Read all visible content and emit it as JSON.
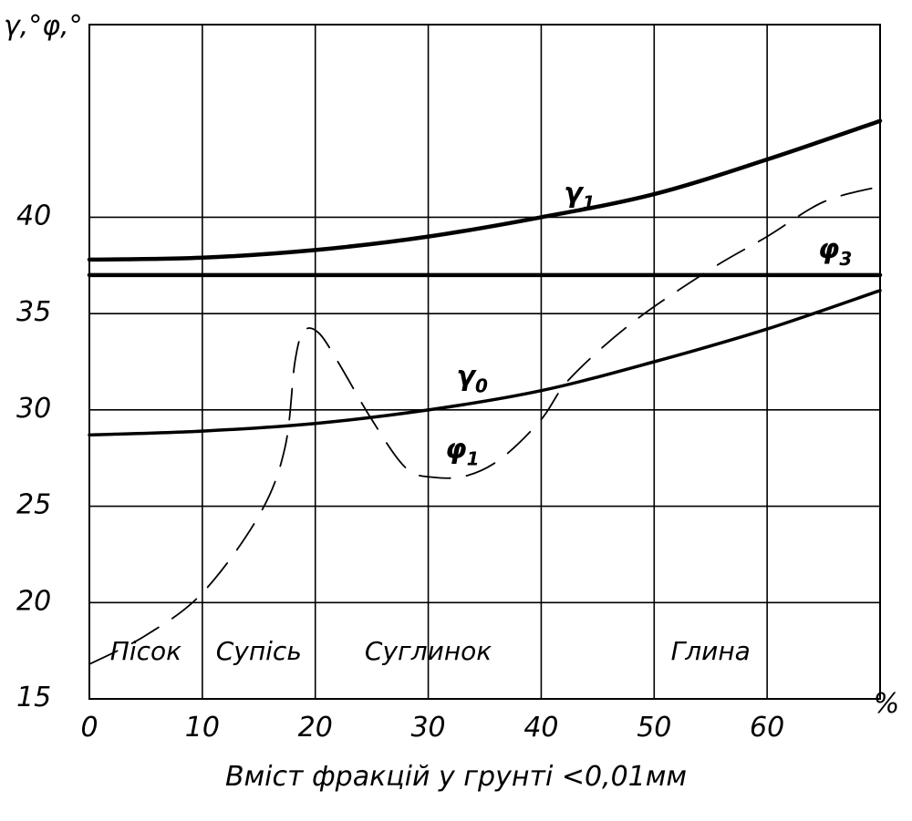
{
  "chart_data": {
    "type": "line",
    "ylabel": "γ,°φ,°",
    "xlabel": "Вміст фракцій у грунті  <0,01мм",
    "x_unit_label": "%",
    "xlim": [
      0,
      70
    ],
    "ylim": [
      15,
      50
    ],
    "x_ticks": [
      0,
      10,
      20,
      30,
      40,
      50,
      60
    ],
    "x_tick_labels": [
      "0",
      "10",
      "20",
      "30",
      "40",
      "50",
      "60"
    ],
    "y_ticks": [
      15,
      20,
      25,
      30,
      35,
      40
    ],
    "y_tick_labels": [
      "15",
      "20",
      "25",
      "30",
      "35",
      "40"
    ],
    "grid": true,
    "soil_zones": [
      {
        "label": "Пісок",
        "from": 0,
        "to": 10
      },
      {
        "label": "Супісь",
        "from": 10,
        "to": 20
      },
      {
        "label": "Суглинок",
        "from": 20,
        "to": 40
      },
      {
        "label": "Глина",
        "from": 40,
        "to": 70
      }
    ],
    "zone_boundary_y": 20,
    "series": [
      {
        "name": "γ1",
        "style": "solid-thick",
        "points": [
          [
            0,
            37.8
          ],
          [
            10,
            37.9
          ],
          [
            20,
            38.3
          ],
          [
            30,
            39
          ],
          [
            40,
            40
          ],
          [
            50,
            41.2
          ],
          [
            60,
            43
          ],
          [
            70,
            45
          ]
        ]
      },
      {
        "name": "φ3",
        "style": "solid-thick",
        "points": [
          [
            0,
            37
          ],
          [
            70,
            37
          ]
        ]
      },
      {
        "name": "γ0",
        "style": "solid",
        "points": [
          [
            0,
            28.7
          ],
          [
            10,
            28.9
          ],
          [
            20,
            29.3
          ],
          [
            30,
            30
          ],
          [
            40,
            31
          ],
          [
            50,
            32.5
          ],
          [
            60,
            34.2
          ],
          [
            70,
            36.2
          ]
        ]
      },
      {
        "name": "φ1",
        "style": "dashed",
        "points": [
          [
            0,
            16.8
          ],
          [
            5,
            18.3
          ],
          [
            10,
            20.5
          ],
          [
            15,
            24.5
          ],
          [
            17.3,
            28
          ],
          [
            18.2,
            32.5
          ],
          [
            19,
            34.1
          ],
          [
            20.3,
            34
          ],
          [
            22,
            32.5
          ],
          [
            25,
            29.5
          ],
          [
            28,
            27
          ],
          [
            30.5,
            26.5
          ],
          [
            33.5,
            26.6
          ],
          [
            36.5,
            27.5
          ],
          [
            40,
            29.5
          ],
          [
            42.5,
            31.6
          ],
          [
            48,
            34.5
          ],
          [
            55,
            37.3
          ],
          [
            60,
            39
          ],
          [
            65,
            40.8
          ],
          [
            70,
            41.6
          ]
        ]
      }
    ],
    "curve_labels": [
      {
        "series": "γ1",
        "text": "γ",
        "sub": "1",
        "x": 42,
        "y": 40.8
      },
      {
        "series": "φ3",
        "text": "φ",
        "sub": "3",
        "x": 64.5,
        "y": 37.9
      },
      {
        "series": "γ0",
        "text": "γ",
        "sub": "0",
        "x": 32.5,
        "y": 31.3
      },
      {
        "series": "φ1",
        "text": "φ",
        "sub": "1",
        "x": 31.5,
        "y": 27.5
      }
    ]
  }
}
